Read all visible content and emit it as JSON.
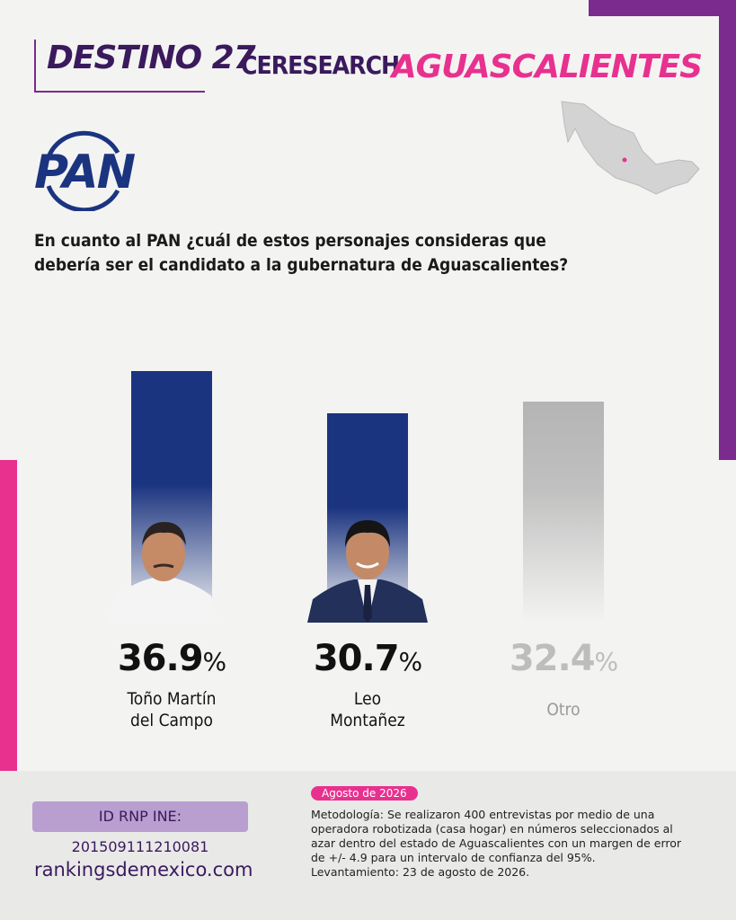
{
  "brand": "DESTINO 27",
  "brand_secondary": "CERESEARCH",
  "state": "AGUASCALIENTES",
  "party": "PAN",
  "chart_data": {
    "type": "bar",
    "title": "En cuanto al PAN ¿cuál de estos personajes consideras que debería ser el candidato a la gubernatura de Aguascalientes?",
    "categories": [
      "Toño Martín\ndel Campo",
      "Leo\nMontañez",
      "Otro"
    ],
    "values": [
      36.9,
      30.7,
      32.4
    ],
    "unit": "%",
    "colors": [
      "#1b3480",
      "#1b3480",
      "#b4b4b4"
    ]
  },
  "footer": {
    "registry": "ID RNP INE: 201509111210081",
    "website": "rankingsdemexico.com",
    "date": "Agosto de 2026",
    "methodology": "Metodología: Se realizaron 400 entrevistas por medio de una operadora robotizada (casa hogar) en números seleccionados al azar dentro del estado de Aguascalientes con un margen de error de +/- 4.9 para un intervalo de confianza del 95%.",
    "fieldwork": "Levantamiento: 23 de agosto de 2026."
  }
}
